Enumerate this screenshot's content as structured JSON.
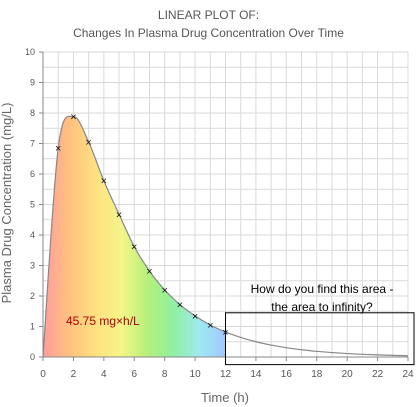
{
  "chart_data": {
    "type": "area",
    "title": "LINEAR PLOT OF:",
    "subtitle": "Changes In Plasma Drug Concentration Over Time",
    "xlabel": "Time (h)",
    "ylabel": "Plasma Drug Concentration (mg/L)",
    "xlim": [
      0,
      24
    ],
    "ylim": [
      0,
      10
    ],
    "x_ticks": [
      0,
      2,
      4,
      6,
      8,
      10,
      12,
      14,
      16,
      18,
      20,
      22,
      24
    ],
    "y_ticks": [
      0,
      1,
      2,
      3,
      4,
      5,
      6,
      7,
      8,
      9,
      10
    ],
    "grid": true,
    "points": [
      {
        "x": 1,
        "y": 6.85
      },
      {
        "x": 2,
        "y": 7.88
      },
      {
        "x": 3,
        "y": 7.05
      },
      {
        "x": 4,
        "y": 5.78
      },
      {
        "x": 5,
        "y": 4.68
      },
      {
        "x": 6,
        "y": 3.62
      },
      {
        "x": 7,
        "y": 2.82
      },
      {
        "x": 8,
        "y": 2.2
      },
      {
        "x": 9,
        "y": 1.72
      },
      {
        "x": 10,
        "y": 1.35
      },
      {
        "x": 11,
        "y": 1.05
      },
      {
        "x": 12,
        "y": 0.82
      }
    ],
    "auc_label": "45.75 mg×h/L",
    "question": "How do you find this area - the area to infinity?",
    "highlight_region_x": [
      12,
      24
    ],
    "colors": {
      "grid": "#d9d9d9",
      "curve": "#888888",
      "label_red": "#aa0000",
      "box": "#000000",
      "gradient": [
        "#ff9c9c",
        "#ffc080",
        "#ffe080",
        "#f5f58a",
        "#b6f07a",
        "#90f0a0",
        "#9fe8f0",
        "#a0c8ff"
      ]
    }
  }
}
